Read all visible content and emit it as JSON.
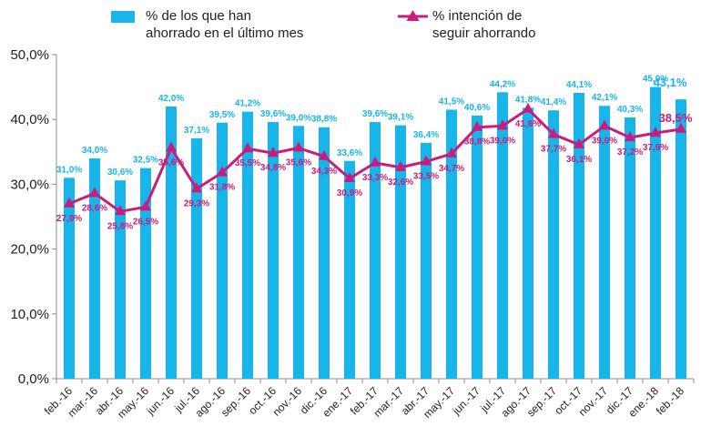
{
  "chart_data": {
    "type": "bar",
    "categories": [
      "feb.-16",
      "mar.-16",
      "abr.-16",
      "may.-16",
      "jun.-16",
      "jul.-16",
      "ago.-16",
      "sep.-16",
      "oct.-16",
      "nov.-16",
      "dic.-16",
      "ene.-17",
      "feb.-17",
      "mar.-17",
      "abr.-17",
      "may.-17",
      "jun.-17",
      "jul.-17",
      "ago.-17",
      "sep.-17",
      "oct.-17",
      "nov.-17",
      "dic.-17",
      "ene.-18",
      "feb.-18"
    ],
    "series": [
      {
        "name": "% de los que han ahorrado en el último mes",
        "name_lines": [
          "% de los que han",
          "ahorrado en el último mes"
        ],
        "kind": "bar",
        "color": "#19b4e8",
        "label_color": "#19b4e8",
        "values": [
          31.0,
          34.0,
          30.6,
          32.5,
          42.0,
          37.1,
          39.5,
          41.2,
          39.6,
          39.0,
          38.8,
          33.6,
          39.6,
          39.1,
          36.4,
          41.5,
          40.6,
          44.2,
          41.8,
          41.4,
          44.1,
          42.1,
          40.3,
          45.0,
          43.1
        ],
        "labels": [
          "31,0%",
          "34,0%",
          "30,6%",
          "32,5%",
          "42,0%",
          "37,1%",
          "39,5%",
          "41,2%",
          "39,6%",
          "39,0%",
          "38,8%",
          "33,6%",
          "39,6%",
          "39,1%",
          "36,4%",
          "41,5%",
          "40,6%",
          "44,2%",
          "41,8%",
          "41,4%",
          "44,1%",
          "42,1%",
          "40,3%",
          "45,0%",
          "43,1%"
        ]
      },
      {
        "name": "% intención de seguir ahorrando",
        "name_lines": [
          "% intención de",
          "seguir ahorrando"
        ],
        "kind": "line",
        "marker": "triangle",
        "color": "#c81c7e",
        "label_color": "#c81c7e",
        "values": [
          27.0,
          28.6,
          25.8,
          26.5,
          35.6,
          29.3,
          31.8,
          35.5,
          34.8,
          35.6,
          34.3,
          30.9,
          33.3,
          32.6,
          33.5,
          34.7,
          38.8,
          39.0,
          41.6,
          37.7,
          36.1,
          39.0,
          37.2,
          37.9,
          38.5
        ],
        "labels": [
          "27,0%",
          "28,6%",
          "25,8%",
          "26,5%",
          "35,6%",
          "29,3%",
          "31,8%",
          "35,5%",
          "34,8%",
          "35,6%",
          "34,3%",
          "30,9%",
          "33,3%",
          "32,6%",
          "33,5%",
          "34,7%",
          "38,8%",
          "39,0%",
          "41,6%",
          "37,7%",
          "36,1%",
          "39,0%",
          "37,2%",
          "37,9%",
          "38,5%"
        ]
      }
    ],
    "ylim": [
      0,
      50
    ],
    "yticks": [
      0,
      10,
      20,
      30,
      40,
      50
    ],
    "ytick_labels": [
      "0,0%",
      "10,0%",
      "20,0%",
      "30,0%",
      "40,0%",
      "50,0%"
    ],
    "grid": false,
    "legend_position": "top"
  }
}
